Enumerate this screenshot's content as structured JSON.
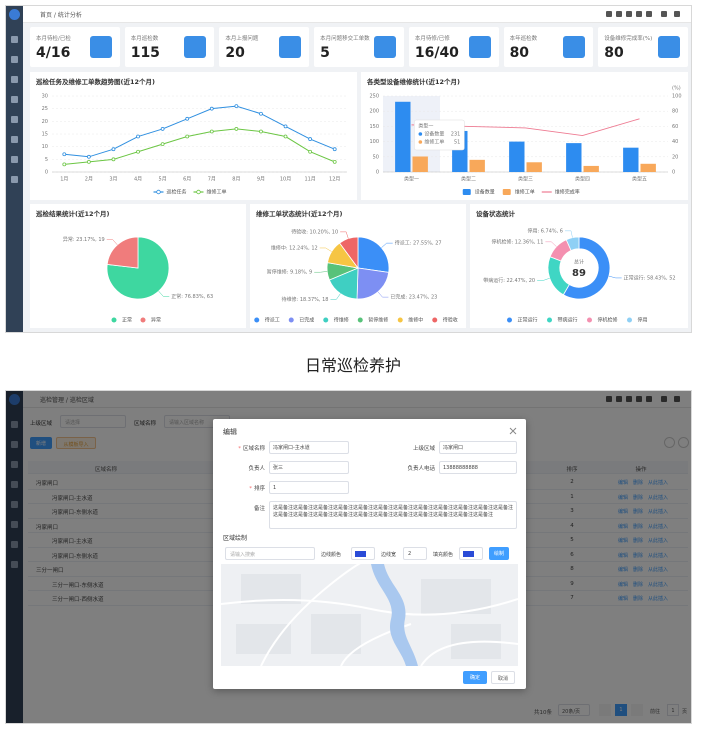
{
  "dashboard": {
    "breadcrumb": "首页 / 统计分析",
    "stats": [
      {
        "label": "本月待检/已检",
        "value": "4/16"
      },
      {
        "label": "本月巡检数",
        "value": 115
      },
      {
        "label": "本月上报问题",
        "value": 20
      },
      {
        "label": "本月问题移交工单数",
        "value": 5
      },
      {
        "label": "本月待修/已修",
        "value": "16/40"
      },
      {
        "label": "本年巡检数",
        "value": 80
      },
      {
        "label": "设备维修完成率(%)",
        "value": 80
      }
    ]
  },
  "chart_data": [
    {
      "type": "line",
      "title": "巡检任务及维修工单数趋势图(近12个月)",
      "categories": [
        "1月",
        "2月",
        "3月",
        "4月",
        "5月",
        "6月",
        "7月",
        "8月",
        "9月",
        "10月",
        "11月",
        "12月"
      ],
      "series": [
        {
          "name": "巡检任务",
          "color": "#2f8fe0",
          "values": [
            7,
            6,
            9,
            14,
            17,
            21,
            25,
            26,
            23,
            18,
            13,
            9
          ]
        },
        {
          "name": "维修工单",
          "color": "#6cc644",
          "values": [
            3,
            4,
            5,
            8,
            11,
            14,
            16,
            17,
            16,
            14,
            8,
            4
          ]
        }
      ],
      "ylim": [
        0,
        30
      ],
      "yticks": [
        0,
        5,
        10,
        15,
        20,
        25,
        30
      ],
      "grid": true,
      "legend": "bottom"
    },
    {
      "type": "bar",
      "title": "各类型设备维修统计(近12个月)",
      "categories": [
        "类型一",
        "类型二",
        "类型三",
        "类型四",
        "类型五"
      ],
      "series": [
        {
          "name": "设备数量",
          "color": "#2d8cf0",
          "values": [
            231,
            135,
            100,
            95,
            80
          ]
        },
        {
          "name": "维修工单",
          "color": "#f8a85a",
          "values": [
            51,
            40,
            32,
            20,
            27
          ]
        },
        {
          "name": "维修完成率",
          "color": "#ee7b92",
          "type": "line",
          "axis": "y2",
          "values": [
            62,
            60,
            58,
            48,
            70
          ]
        }
      ],
      "ylim": [
        0,
        250
      ],
      "yticks": [
        0,
        50,
        100,
        150,
        200,
        250
      ],
      "y2lim": [
        0,
        100
      ],
      "y2ticks": [
        0,
        20,
        40,
        60,
        80,
        100
      ],
      "y2label": "(%)",
      "grid": true,
      "legend": "bottom",
      "tooltip": {
        "title": "类型一",
        "rows": [
          {
            "name": "设备数量",
            "value": 231
          },
          {
            "name": "维修工单",
            "value": 51
          }
        ]
      }
    },
    {
      "type": "pie",
      "title": "巡检结果统计(近12个月)",
      "categories": [
        "正常",
        "异常"
      ],
      "values": [
        63,
        19
      ],
      "value_labels": [
        "正常: 76.83%, 63",
        "异常: 23.17%, 19"
      ],
      "colors": [
        "#3ed7a0",
        "#f07c7c"
      ],
      "legend": "bottom"
    },
    {
      "type": "pie",
      "title": "维修工单状态统计(近12个月)",
      "categories": [
        "待派工",
        "已完成",
        "待维修",
        "暂停维修",
        "维修中",
        "待验收"
      ],
      "values": [
        27,
        23,
        18,
        9,
        12,
        10
      ],
      "value_labels": [
        "待派工: 27.55%, 27",
        "已完成: 23.47%, 23",
        "待维修: 18.37%, 18",
        "暂停维修: 9.18%, 9",
        "维修中: 12.24%, 12",
        "待验收: 10.20%, 10"
      ],
      "colors": [
        "#3b8ff7",
        "#7d8ff3",
        "#3fcfc2",
        "#58c27a",
        "#f6c543",
        "#ee6666"
      ],
      "legend": "bottom"
    },
    {
      "type": "donut",
      "title": "设备状态统计",
      "categories": [
        "正常运行",
        "带病运行",
        "停机检修",
        "停用"
      ],
      "values": [
        52,
        20,
        11,
        6
      ],
      "value_labels": [
        "正常运行: 58.43%, 52",
        "带病运行: 22.47%, 20",
        "停机检修: 12.36%, 11",
        "停用: 6.74%, 6"
      ],
      "colors": [
        "#3b8ff7",
        "#3fd6c4",
        "#f490b0",
        "#8fd0f5"
      ],
      "center_label": "总计",
      "total": 89,
      "legend": "bottom"
    }
  ],
  "caption": "日常巡检养护",
  "area_page": {
    "breadcrumb": "巡检管理 / 巡检区域",
    "filters": [
      {
        "label": "上级区域",
        "placeholder": "请选择"
      },
      {
        "label": "区域名称",
        "placeholder": "请输入区域名称"
      }
    ],
    "buttons": [
      "新增",
      "从模板导入"
    ],
    "table": {
      "columns": [
        "区域名称",
        "排序",
        "操作"
      ],
      "actions": [
        "编辑",
        "删除",
        "从此插入"
      ],
      "rows": [
        {
          "name": "冯家闸口",
          "sort": 2,
          "children": [
            {
              "name": "冯家闸口-主水道",
              "sort": 1
            },
            {
              "name": "冯家闸口-东侧水道",
              "sort": 3
            }
          ]
        },
        {
          "name": "冯家闸口",
          "sort": 4,
          "children": [
            {
              "name": "冯家闸口-主水道",
              "sort": 5
            },
            {
              "name": "冯家闸口-东侧水道",
              "sort": 6
            }
          ]
        },
        {
          "name": "三分一闸口",
          "sort": 8,
          "children": [
            {
              "name": "三分一闸口-东侧水道",
              "sort": 9
            },
            {
              "name": "三分一闸口-西侧水道",
              "sort": 7
            }
          ]
        }
      ]
    },
    "pagination": {
      "total": "共10条",
      "size": "20条/页",
      "page": "1",
      "goto": "前往",
      "goto_page": "1",
      "unit": "页"
    }
  },
  "dialog": {
    "title": "编辑",
    "required_mark": "*",
    "fields": [
      {
        "label": "区域名称",
        "value": "冯家闸口-主水道",
        "required": true
      },
      {
        "label": "上级区域",
        "value": "冯家闸口"
      },
      {
        "label": "负责人",
        "value": "张三"
      },
      {
        "label": "负责人电话",
        "value": "13888888888"
      },
      {
        "label": "排序",
        "value": "1",
        "required": true
      },
      {
        "label": "备注",
        "value": "这是备注这是备注这是备注这是备注这是备注这是备注这是备注这是备注这是备注这是备注这是备注这是备注这是备注这是备注这是备注这是备注这是备注这是备注这是备注这是备注这是备注这是备注这是备注"
      }
    ],
    "draw": {
      "title": "区域绘制",
      "search_placeholder": "请输入搜索",
      "stroke_color_label": "边线颜色",
      "stroke_color": "#2a4bd7",
      "stroke_width_label": "边线宽",
      "stroke_width": "2",
      "fill_color_label": "填充颜色",
      "fill_color": "#2a4bd7",
      "button": "绘制"
    },
    "buttons": [
      "确定",
      "取消"
    ]
  }
}
